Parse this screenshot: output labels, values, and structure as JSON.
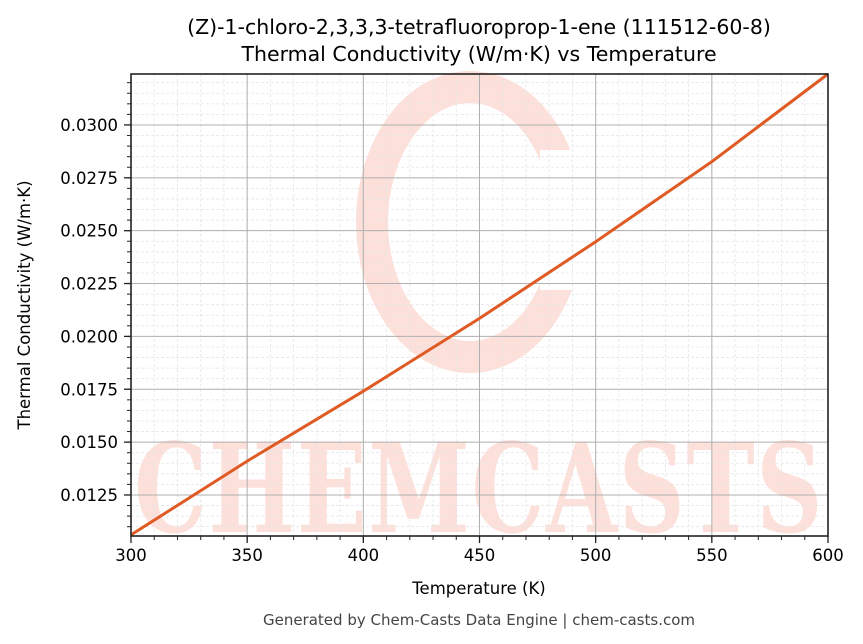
{
  "chart_data": {
    "type": "line",
    "title": "(Z)-1-chloro-2,3,3,3-tetrafluoroprop-1-ene (111512-60-8)",
    "subtitle": "Thermal Conductivity (W/m·K) vs Temperature",
    "xlabel": "Temperature (K)",
    "ylabel": "Thermal Conductivity (W/m·K)",
    "xlim": [
      300,
      600
    ],
    "ylim": [
      0.01056,
      0.03241
    ],
    "xticks": [
      300,
      350,
      400,
      450,
      500,
      550,
      600
    ],
    "xtick_labels": [
      "300",
      "350",
      "400",
      "450",
      "500",
      "550",
      "600"
    ],
    "yticks": [
      0.0125,
      0.015,
      0.0175,
      0.02,
      0.0225,
      0.025,
      0.0275,
      0.03
    ],
    "ytick_labels": [
      "0.0125",
      "0.0150",
      "0.0175",
      "0.0200",
      "0.0225",
      "0.0250",
      "0.0275",
      "0.0300"
    ],
    "x_minor_step": 10,
    "y_minor_step": 0.0005,
    "grid": true,
    "legend": null,
    "series": [
      {
        "name": "Thermal Conductivity",
        "color": "#e05a24",
        "x": [
          300,
          350,
          400,
          450,
          500,
          550,
          600
        ],
        "y": [
          0.01061,
          0.0141,
          0.01741,
          0.02085,
          0.02448,
          0.02826,
          0.03241
        ]
      }
    ]
  },
  "watermark": {
    "text": "CHEMCASTS",
    "color": "#fde0da"
  },
  "footer": {
    "text": "Generated by Chem-Casts Data Engine | chem-casts.com"
  },
  "colors": {
    "line": "#e05a24",
    "major_grid": "#b0b0b0",
    "minor_grid": "#e6e6e6",
    "axis": "#222222",
    "footer_text": "#444444"
  }
}
